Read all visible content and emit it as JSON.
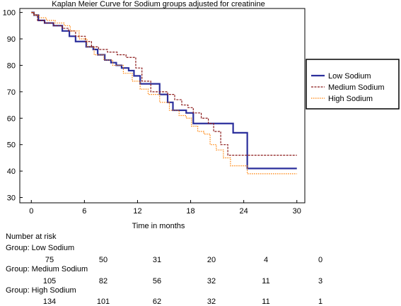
{
  "chart_data": {
    "type": "line",
    "title": "Kaplan Meier Curve for Sodium groups adjusted for creatinine",
    "xlabel": "Time in months",
    "ylabel": "",
    "xlim": [
      -1.3,
      30.9
    ],
    "ylim": [
      28,
      101.5
    ],
    "xticks": [
      "0",
      "6",
      "12",
      "18",
      "24",
      "30"
    ],
    "yticks": [
      "30",
      "40",
      "50",
      "60",
      "70",
      "80",
      "90",
      "100"
    ],
    "legend_position": "right",
    "series": [
      {
        "name": "Low Sodium",
        "color": "#2b2f9c",
        "style": "solid",
        "x": [
          0,
          0.3,
          0.8,
          1.5,
          2.5,
          3.5,
          4.3,
          5.0,
          6.2,
          7.0,
          7.5,
          8.3,
          9.0,
          9.6,
          10.2,
          11.0,
          11.6,
          12.3,
          14.5,
          15.4,
          16.0,
          17.5,
          18.3,
          20.7,
          22.8,
          24.4,
          30.0
        ],
        "y": [
          100,
          99,
          97,
          96,
          95,
          93,
          91,
          89,
          87,
          86,
          84,
          82,
          81,
          80,
          79,
          78,
          76,
          73,
          69,
          66,
          63,
          62,
          58,
          58,
          54.5,
          41,
          41
        ]
      },
      {
        "name": "Medium Sodium",
        "color": "#8b1a1a",
        "style": "dashed",
        "x": [
          0,
          0.3,
          0.7,
          1.5,
          2.5,
          3.5,
          4.2,
          5.0,
          6.1,
          6.8,
          7.6,
          8.6,
          9.7,
          10.7,
          11.8,
          12.5,
          13.5,
          15.4,
          16.2,
          17.0,
          17.7,
          18.3,
          19.2,
          20.0,
          20.6,
          21.4,
          22.2,
          24.0,
          30.0
        ],
        "y": [
          100,
          99,
          97,
          96,
          95,
          94,
          93,
          91,
          89,
          87,
          86,
          85,
          84,
          83,
          79,
          74,
          70,
          69,
          67,
          65,
          64,
          62,
          60,
          58,
          55,
          50,
          46,
          46,
          46
        ]
      },
      {
        "name": "High Sodium",
        "color": "#ff7f00",
        "style": "dotted",
        "x": [
          0,
          0.3,
          0.9,
          1.7,
          2.7,
          3.7,
          4.4,
          5.4,
          6.3,
          7.1,
          8.2,
          9.2,
          10.4,
          11.4,
          12.3,
          13.2,
          14.5,
          15.6,
          16.7,
          17.5,
          18.1,
          18.8,
          19.5,
          20.2,
          20.9,
          21.7,
          22.5,
          24.4,
          30.0
        ],
        "y": [
          100,
          99,
          98,
          97,
          96,
          95,
          93,
          90,
          87,
          84,
          82,
          80,
          77,
          74,
          71,
          69,
          66,
          63,
          61,
          60,
          57,
          55,
          54,
          50,
          48,
          45,
          42,
          39,
          39
        ]
      }
    ]
  },
  "risk_table": {
    "title": "Number at risk",
    "groups": [
      {
        "label": "Group: Low Sodium",
        "values": [
          "75",
          "50",
          "31",
          "20",
          "4",
          "0"
        ]
      },
      {
        "label": "Group: Medium Sodium",
        "values": [
          "105",
          "82",
          "56",
          "32",
          "11",
          "3"
        ]
      },
      {
        "label": "Group: High Sodium",
        "values": [
          "134",
          "101",
          "62",
          "32",
          "11",
          "1"
        ]
      }
    ]
  }
}
